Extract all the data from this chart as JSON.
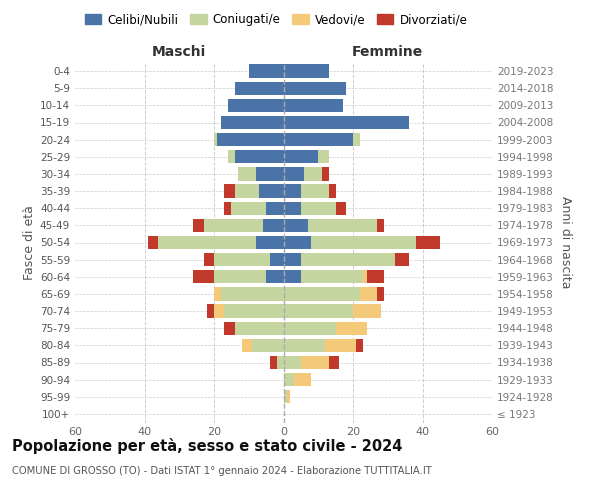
{
  "age_groups": [
    "100+",
    "95-99",
    "90-94",
    "85-89",
    "80-84",
    "75-79",
    "70-74",
    "65-69",
    "60-64",
    "55-59",
    "50-54",
    "45-49",
    "40-44",
    "35-39",
    "30-34",
    "25-29",
    "20-24",
    "15-19",
    "10-14",
    "5-9",
    "0-4"
  ],
  "birth_years": [
    "≤ 1923",
    "1924-1928",
    "1929-1933",
    "1934-1938",
    "1939-1943",
    "1944-1948",
    "1949-1953",
    "1954-1958",
    "1959-1963",
    "1964-1968",
    "1969-1973",
    "1974-1978",
    "1979-1983",
    "1984-1988",
    "1989-1993",
    "1994-1998",
    "1999-2003",
    "2004-2008",
    "2009-2013",
    "2014-2018",
    "2019-2023"
  ],
  "colors": {
    "celibi": "#4a74a8",
    "coniugati": "#c5d5a0",
    "vedovi": "#f5c97a",
    "divorziati": "#c0392b"
  },
  "maschi": {
    "celibi": [
      0,
      0,
      0,
      0,
      0,
      0,
      0,
      0,
      5,
      4,
      8,
      6,
      5,
      7,
      8,
      14,
      19,
      18,
      16,
      14,
      10
    ],
    "coniugati": [
      0,
      0,
      0,
      2,
      9,
      14,
      17,
      18,
      15,
      16,
      28,
      17,
      10,
      7,
      5,
      2,
      1,
      0,
      0,
      0,
      0
    ],
    "vedovi": [
      0,
      0,
      0,
      0,
      3,
      0,
      3,
      2,
      0,
      0,
      0,
      0,
      0,
      0,
      0,
      0,
      0,
      0,
      0,
      0,
      0
    ],
    "divorziati": [
      0,
      0,
      0,
      2,
      0,
      3,
      2,
      0,
      6,
      3,
      3,
      3,
      2,
      3,
      0,
      0,
      0,
      0,
      0,
      0,
      0
    ]
  },
  "femmine": {
    "celibi": [
      0,
      0,
      0,
      0,
      0,
      0,
      0,
      0,
      5,
      5,
      8,
      7,
      5,
      5,
      6,
      10,
      20,
      36,
      17,
      18,
      13
    ],
    "coniugati": [
      0,
      1,
      3,
      5,
      12,
      15,
      20,
      22,
      18,
      27,
      30,
      20,
      10,
      8,
      5,
      3,
      2,
      0,
      0,
      0,
      0
    ],
    "vedovi": [
      0,
      1,
      5,
      8,
      9,
      9,
      8,
      5,
      1,
      0,
      0,
      0,
      0,
      0,
      0,
      0,
      0,
      0,
      0,
      0,
      0
    ],
    "divorziati": [
      0,
      0,
      0,
      3,
      2,
      0,
      0,
      2,
      5,
      4,
      7,
      2,
      3,
      2,
      2,
      0,
      0,
      0,
      0,
      0,
      0
    ]
  },
  "title": "Popolazione per età, sesso e stato civile - 2024",
  "subtitle": "COMUNE DI GROSSO (TO) - Dati ISTAT 1° gennaio 2024 - Elaborazione TUTTITALIA.IT",
  "xlabel_left": "Maschi",
  "xlabel_right": "Femmine",
  "ylabel_left": "Fasce di età",
  "ylabel_right": "Anni di nascita",
  "xlim": 60,
  "legend_labels": [
    "Celibi/Nubili",
    "Coniugati/e",
    "Vedovi/e",
    "Divorziati/e"
  ],
  "bg_color": "#ffffff",
  "grid_color": "#cccccc"
}
